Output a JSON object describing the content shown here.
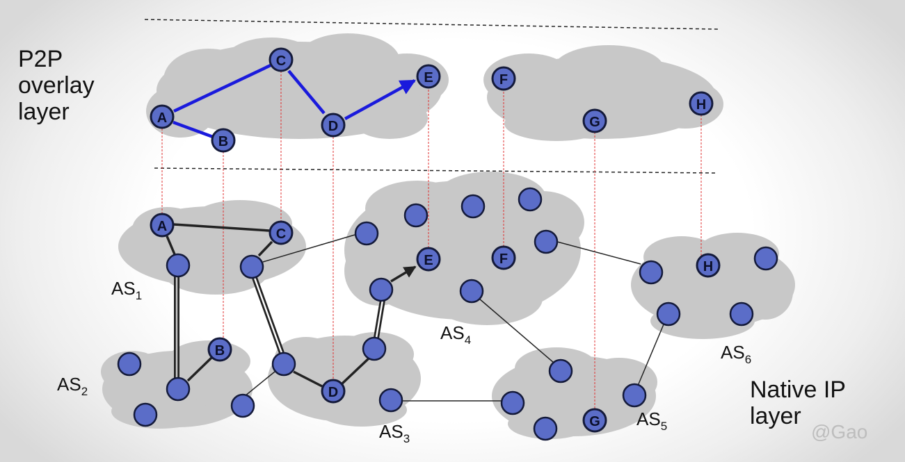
{
  "overlay_label": "P2P\noverlay\nlayer",
  "native_label": "Native IP\nlayer",
  "watermark": "@Gao",
  "nodes": {
    "A": "A",
    "B": "B",
    "C": "C",
    "D": "D",
    "E": "E",
    "F": "F",
    "G": "G",
    "H": "H"
  },
  "autonomous_systems": [
    {
      "id": "AS1",
      "prefix": "AS",
      "sub": "1"
    },
    {
      "id": "AS2",
      "prefix": "AS",
      "sub": "2"
    },
    {
      "id": "AS3",
      "prefix": "AS",
      "sub": "3"
    },
    {
      "id": "AS4",
      "prefix": "AS",
      "sub": "4"
    },
    {
      "id": "AS5",
      "prefix": "AS",
      "sub": "5"
    },
    {
      "id": "AS6",
      "prefix": "AS",
      "sub": "6"
    }
  ],
  "colors": {
    "node_fill": "#5b6dc8",
    "node_stroke": "#141a3a",
    "cloud": "#c8c8c8",
    "overlay_link": "#1a1adc",
    "ip_link": "#222222",
    "mapping_line": "#e03030"
  }
}
